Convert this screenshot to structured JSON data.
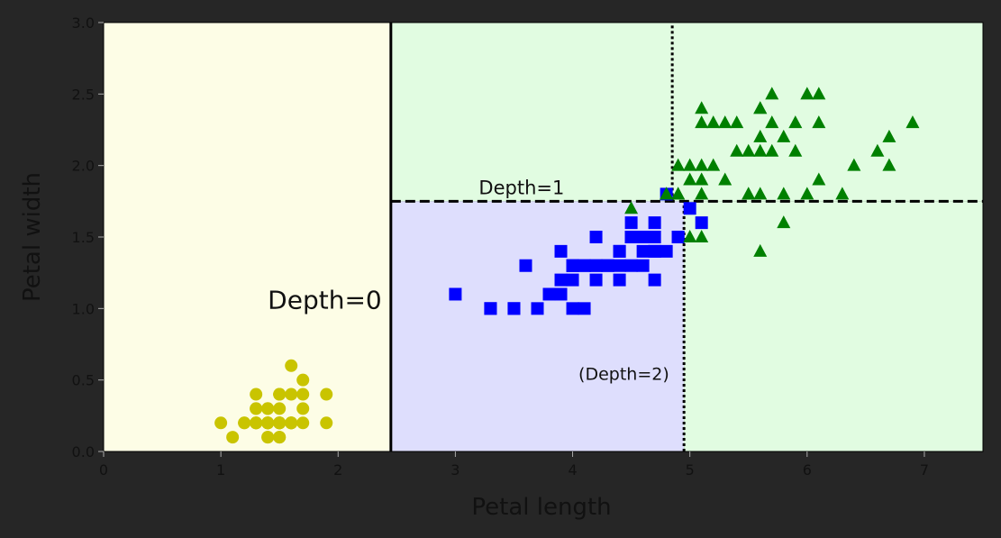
{
  "chart_data": {
    "type": "scatter",
    "title": "",
    "xlabel": "Petal length",
    "ylabel": "Petal width",
    "xlim": [
      0,
      7.5
    ],
    "ylim": [
      0,
      3.0
    ],
    "xticks": [
      0,
      1,
      2,
      3,
      4,
      5,
      6,
      7
    ],
    "yticks": [
      0.0,
      0.5,
      1.0,
      1.5,
      2.0,
      2.5,
      3.0
    ],
    "xtick_labels": [
      "0",
      "1",
      "2",
      "3",
      "4",
      "5",
      "6",
      "7"
    ],
    "ytick_labels": [
      "0.0",
      "0.5",
      "1.0",
      "1.5",
      "2.0",
      "2.5",
      "3.0"
    ],
    "grid": false,
    "legend": "none",
    "regions": [
      {
        "x": [
          0,
          2.45
        ],
        "y": [
          0,
          3.0
        ],
        "color": "#fdfde6"
      },
      {
        "x": [
          2.45,
          4.95
        ],
        "y": [
          0,
          1.75
        ],
        "color": "#dedefd"
      },
      {
        "x": [
          4.95,
          7.5
        ],
        "y": [
          0,
          1.75
        ],
        "color": "#e1fce1"
      },
      {
        "x": [
          2.45,
          7.5
        ],
        "y": [
          1.75,
          3.0
        ],
        "color": "#e1fce1"
      }
    ],
    "boundaries": [
      {
        "style": "solid",
        "x": [
          2.45,
          2.45
        ],
        "y": [
          0,
          3.0
        ]
      },
      {
        "style": "dashed",
        "x": [
          2.45,
          7.5
        ],
        "y": [
          1.75,
          1.75
        ]
      },
      {
        "style": "dotted",
        "x": [
          4.95,
          4.95
        ],
        "y": [
          0,
          1.75
        ]
      },
      {
        "style": "dotted",
        "x": [
          4.85,
          4.85
        ],
        "y": [
          1.75,
          3.0
        ]
      }
    ],
    "annotations": [
      {
        "text": "Depth=0",
        "x": 1.4,
        "y": 1.0,
        "size": "large"
      },
      {
        "text": "Depth=1",
        "x": 3.2,
        "y": 1.8,
        "size": "medium"
      },
      {
        "text": "(Depth=2)",
        "x": 4.05,
        "y": 0.5,
        "size": "small"
      }
    ],
    "series": [
      {
        "marker": "circle",
        "color": "#c9c400",
        "points": [
          [
            1.4,
            0.2
          ],
          [
            1.4,
            0.2
          ],
          [
            1.3,
            0.2
          ],
          [
            1.5,
            0.2
          ],
          [
            1.4,
            0.2
          ],
          [
            1.7,
            0.4
          ],
          [
            1.4,
            0.3
          ],
          [
            1.5,
            0.2
          ],
          [
            1.4,
            0.2
          ],
          [
            1.5,
            0.1
          ],
          [
            1.5,
            0.2
          ],
          [
            1.6,
            0.2
          ],
          [
            1.4,
            0.1
          ],
          [
            1.1,
            0.1
          ],
          [
            1.2,
            0.2
          ],
          [
            1.5,
            0.4
          ],
          [
            1.3,
            0.4
          ],
          [
            1.4,
            0.3
          ],
          [
            1.7,
            0.3
          ],
          [
            1.5,
            0.3
          ],
          [
            1.7,
            0.2
          ],
          [
            1.5,
            0.4
          ],
          [
            1.0,
            0.2
          ],
          [
            1.7,
            0.5
          ],
          [
            1.9,
            0.2
          ],
          [
            1.6,
            0.2
          ],
          [
            1.6,
            0.4
          ],
          [
            1.5,
            0.2
          ],
          [
            1.4,
            0.2
          ],
          [
            1.6,
            0.2
          ],
          [
            1.6,
            0.2
          ],
          [
            1.5,
            0.4
          ],
          [
            1.5,
            0.1
          ],
          [
            1.4,
            0.2
          ],
          [
            1.5,
            0.2
          ],
          [
            1.2,
            0.2
          ],
          [
            1.3,
            0.2
          ],
          [
            1.4,
            0.1
          ],
          [
            1.3,
            0.2
          ],
          [
            1.5,
            0.2
          ],
          [
            1.3,
            0.3
          ],
          [
            1.3,
            0.3
          ],
          [
            1.3,
            0.2
          ],
          [
            1.6,
            0.6
          ],
          [
            1.9,
            0.4
          ],
          [
            1.4,
            0.3
          ],
          [
            1.6,
            0.2
          ],
          [
            1.4,
            0.2
          ],
          [
            1.5,
            0.2
          ],
          [
            1.4,
            0.2
          ]
        ]
      },
      {
        "marker": "square",
        "color": "#0000ff",
        "points": [
          [
            4.7,
            1.4
          ],
          [
            4.5,
            1.5
          ],
          [
            4.9,
            1.5
          ],
          [
            4.0,
            1.3
          ],
          [
            4.6,
            1.5
          ],
          [
            4.5,
            1.3
          ],
          [
            4.7,
            1.6
          ],
          [
            3.3,
            1.0
          ],
          [
            4.6,
            1.3
          ],
          [
            3.9,
            1.4
          ],
          [
            3.5,
            1.0
          ],
          [
            4.2,
            1.5
          ],
          [
            4.0,
            1.0
          ],
          [
            4.7,
            1.4
          ],
          [
            3.6,
            1.3
          ],
          [
            4.4,
            1.4
          ],
          [
            4.5,
            1.5
          ],
          [
            4.1,
            1.0
          ],
          [
            4.5,
            1.5
          ],
          [
            3.9,
            1.1
          ],
          [
            4.8,
            1.8
          ],
          [
            4.0,
            1.3
          ],
          [
            4.9,
            1.5
          ],
          [
            4.7,
            1.2
          ],
          [
            4.3,
            1.3
          ],
          [
            4.4,
            1.4
          ],
          [
            4.8,
            1.4
          ],
          [
            5.0,
            1.7
          ],
          [
            4.5,
            1.5
          ],
          [
            3.5,
            1.0
          ],
          [
            3.8,
            1.1
          ],
          [
            3.7,
            1.0
          ],
          [
            3.9,
            1.2
          ],
          [
            5.1,
            1.6
          ],
          [
            4.5,
            1.5
          ],
          [
            4.5,
            1.6
          ],
          [
            4.7,
            1.5
          ],
          [
            4.4,
            1.3
          ],
          [
            4.1,
            1.3
          ],
          [
            4.0,
            1.3
          ],
          [
            4.4,
            1.2
          ],
          [
            4.6,
            1.4
          ],
          [
            4.0,
            1.2
          ],
          [
            3.3,
            1.0
          ],
          [
            4.2,
            1.3
          ],
          [
            4.2,
            1.2
          ],
          [
            4.2,
            1.3
          ],
          [
            4.3,
            1.3
          ],
          [
            3.0,
            1.1
          ],
          [
            4.1,
            1.3
          ]
        ]
      },
      {
        "marker": "triangle",
        "color": "#008000",
        "points": [
          [
            6.0,
            2.5
          ],
          [
            5.1,
            1.9
          ],
          [
            5.9,
            2.1
          ],
          [
            5.6,
            1.8
          ],
          [
            5.8,
            2.2
          ],
          [
            6.6,
            2.1
          ],
          [
            4.5,
            1.7
          ],
          [
            6.3,
            1.8
          ],
          [
            5.8,
            1.8
          ],
          [
            6.1,
            2.5
          ],
          [
            5.1,
            2.0
          ],
          [
            5.3,
            1.9
          ],
          [
            5.5,
            2.1
          ],
          [
            5.0,
            2.0
          ],
          [
            5.1,
            2.4
          ],
          [
            5.3,
            2.3
          ],
          [
            5.5,
            1.8
          ],
          [
            6.7,
            2.2
          ],
          [
            6.9,
            2.3
          ],
          [
            5.0,
            1.5
          ],
          [
            5.7,
            2.3
          ],
          [
            4.9,
            2.0
          ],
          [
            6.7,
            2.0
          ],
          [
            4.9,
            1.8
          ],
          [
            5.7,
            2.1
          ],
          [
            6.0,
            1.8
          ],
          [
            4.8,
            1.8
          ],
          [
            4.9,
            1.8
          ],
          [
            5.6,
            2.1
          ],
          [
            5.8,
            1.6
          ],
          [
            6.1,
            1.9
          ],
          [
            6.4,
            2.0
          ],
          [
            5.6,
            2.2
          ],
          [
            5.1,
            1.5
          ],
          [
            5.6,
            1.4
          ],
          [
            6.1,
            2.3
          ],
          [
            5.6,
            2.4
          ],
          [
            5.5,
            1.8
          ],
          [
            4.8,
            1.8
          ],
          [
            5.4,
            2.1
          ],
          [
            5.6,
            2.4
          ],
          [
            5.1,
            2.3
          ],
          [
            5.1,
            1.9
          ],
          [
            5.9,
            2.3
          ],
          [
            5.7,
            2.5
          ],
          [
            5.2,
            2.3
          ],
          [
            5.0,
            1.9
          ],
          [
            5.2,
            2.0
          ],
          [
            5.4,
            2.3
          ],
          [
            5.1,
            1.8
          ]
        ]
      }
    ]
  }
}
